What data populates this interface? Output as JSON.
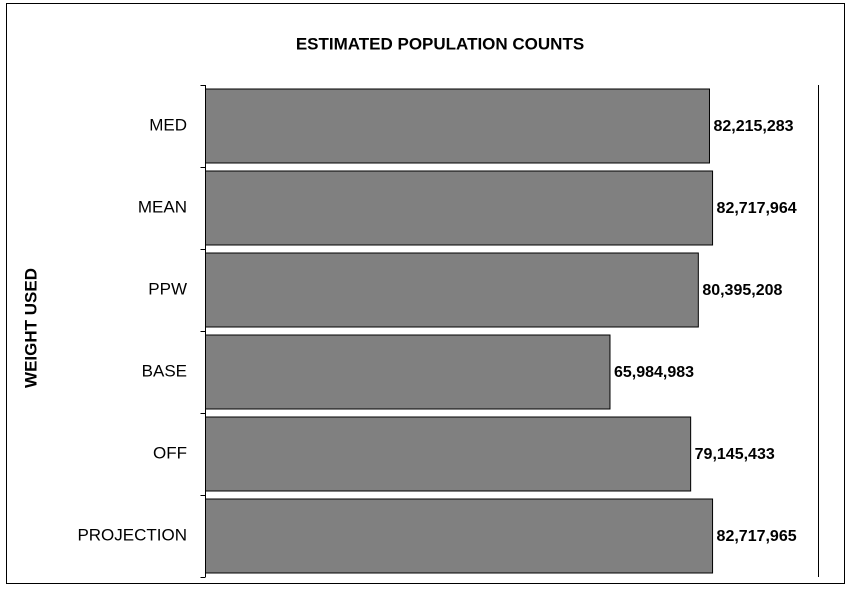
{
  "chart_data": {
    "type": "bar",
    "orientation": "horizontal",
    "title": "ESTIMATED POPULATION COUNTS",
    "y_label": "WEIGHT USED",
    "categories": [
      "MED",
      "MEAN",
      "PPW",
      "BASE",
      "OFF",
      "PROJECTION"
    ],
    "values": [
      82215283,
      82717964,
      80395208,
      65984983,
      79145433,
      82717965
    ],
    "value_labels": [
      "82,215,283",
      "82,717,964",
      "80,395,208",
      "65,984,983",
      "79,145,433",
      "82,717,965"
    ],
    "color": "#808080",
    "xlim": [
      0,
      100000000
    ]
  }
}
